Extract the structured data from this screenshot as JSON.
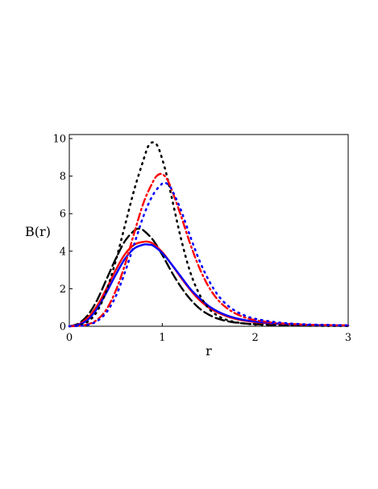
{
  "chart_data": {
    "type": "line",
    "title": "",
    "xlabel": "r",
    "ylabel": "B(r)",
    "xlim": [
      0,
      3
    ],
    "ylim": [
      0,
      10
    ],
    "xticks": [
      0,
      1,
      2,
      3
    ],
    "yticks": [
      0,
      2,
      4,
      6,
      8,
      10
    ],
    "grid": false,
    "legend": "none",
    "series": [
      {
        "color": "#000000",
        "style": "dashed",
        "x": [
          0,
          0.1,
          0.2,
          0.3,
          0.4,
          0.5,
          0.6,
          0.7,
          0.75,
          0.8,
          0.9,
          1.0,
          1.1,
          1.2,
          1.3,
          1.4,
          1.5,
          1.6,
          1.7,
          1.8,
          1.9,
          2.0,
          2.2,
          2.4,
          2.6,
          2.8,
          3.0
        ],
        "y": [
          0,
          0.15,
          0.6,
          1.4,
          2.5,
          3.6,
          4.55,
          5.1,
          5.2,
          5.1,
          4.6,
          3.8,
          2.9,
          2.1,
          1.45,
          0.95,
          0.62,
          0.4,
          0.27,
          0.19,
          0.14,
          0.11,
          0.07,
          0.05,
          0.04,
          0.03,
          0.02
        ]
      },
      {
        "color": "#ff0000",
        "style": "solid",
        "x": [
          0,
          0.1,
          0.2,
          0.3,
          0.4,
          0.5,
          0.6,
          0.7,
          0.8,
          0.85,
          0.9,
          1.0,
          1.1,
          1.2,
          1.3,
          1.4,
          1.5,
          1.6,
          1.7,
          1.8,
          1.9,
          2.0,
          2.2,
          2.4,
          2.6,
          2.8,
          3.0
        ],
        "y": [
          0,
          0.1,
          0.45,
          1.1,
          2.0,
          3.0,
          3.85,
          4.35,
          4.5,
          4.5,
          4.4,
          3.95,
          3.3,
          2.6,
          1.95,
          1.4,
          1.0,
          0.72,
          0.52,
          0.38,
          0.29,
          0.22,
          0.14,
          0.09,
          0.06,
          0.05,
          0.04
        ]
      },
      {
        "color": "#0000ff",
        "style": "solid",
        "x": [
          0,
          0.1,
          0.2,
          0.3,
          0.4,
          0.5,
          0.6,
          0.7,
          0.8,
          0.85,
          0.9,
          1.0,
          1.1,
          1.2,
          1.3,
          1.4,
          1.5,
          1.6,
          1.7,
          1.8,
          1.9,
          2.0,
          2.2,
          2.4,
          2.6,
          2.8,
          3.0
        ],
        "y": [
          0,
          0.08,
          0.35,
          0.95,
          1.8,
          2.75,
          3.6,
          4.15,
          4.35,
          4.35,
          4.3,
          3.9,
          3.3,
          2.65,
          2.0,
          1.5,
          1.08,
          0.78,
          0.57,
          0.42,
          0.32,
          0.25,
          0.16,
          0.1,
          0.07,
          0.05,
          0.04
        ]
      },
      {
        "color": "#000000",
        "style": "dotted",
        "x": [
          0,
          0.1,
          0.2,
          0.3,
          0.4,
          0.5,
          0.6,
          0.7,
          0.8,
          0.85,
          0.9,
          0.95,
          1.0,
          1.05,
          1.1,
          1.2,
          1.3,
          1.4,
          1.5,
          1.6,
          1.7,
          1.8,
          1.9,
          2.0,
          2.2,
          2.4,
          2.6,
          2.8,
          3.0
        ],
        "y": [
          0,
          0.05,
          0.25,
          0.8,
          1.9,
          3.5,
          5.4,
          7.3,
          8.9,
          9.6,
          9.8,
          9.6,
          8.9,
          8.0,
          6.9,
          4.7,
          2.9,
          1.7,
          0.95,
          0.55,
          0.33,
          0.21,
          0.14,
          0.1,
          0.06,
          0.04,
          0.03,
          0.02,
          0.02
        ]
      },
      {
        "color": "#ff0000",
        "style": "dashdot",
        "x": [
          0,
          0.1,
          0.2,
          0.3,
          0.4,
          0.5,
          0.6,
          0.7,
          0.8,
          0.9,
          0.95,
          1.0,
          1.05,
          1.1,
          1.2,
          1.3,
          1.4,
          1.5,
          1.6,
          1.7,
          1.8,
          1.9,
          2.0,
          2.2,
          2.4,
          2.6,
          2.8,
          3.0
        ],
        "y": [
          0,
          0.02,
          0.1,
          0.35,
          0.9,
          1.9,
          3.3,
          5.0,
          6.6,
          7.7,
          8.05,
          8.1,
          7.85,
          7.3,
          5.9,
          4.4,
          3.1,
          2.1,
          1.4,
          0.95,
          0.65,
          0.45,
          0.33,
          0.19,
          0.12,
          0.08,
          0.06,
          0.05
        ]
      },
      {
        "color": "#0000ff",
        "style": "dotted",
        "x": [
          0,
          0.1,
          0.2,
          0.3,
          0.4,
          0.5,
          0.6,
          0.7,
          0.8,
          0.9,
          1.0,
          1.05,
          1.1,
          1.2,
          1.3,
          1.4,
          1.5,
          1.6,
          1.7,
          1.8,
          1.9,
          2.0,
          2.2,
          2.4,
          2.6,
          2.8,
          3.0
        ],
        "y": [
          0,
          0.02,
          0.08,
          0.28,
          0.75,
          1.6,
          2.9,
          4.4,
          5.9,
          7.0,
          7.6,
          7.6,
          7.3,
          6.2,
          4.8,
          3.5,
          2.45,
          1.65,
          1.12,
          0.78,
          0.55,
          0.4,
          0.23,
          0.14,
          0.09,
          0.07,
          0.05
        ]
      }
    ]
  }
}
